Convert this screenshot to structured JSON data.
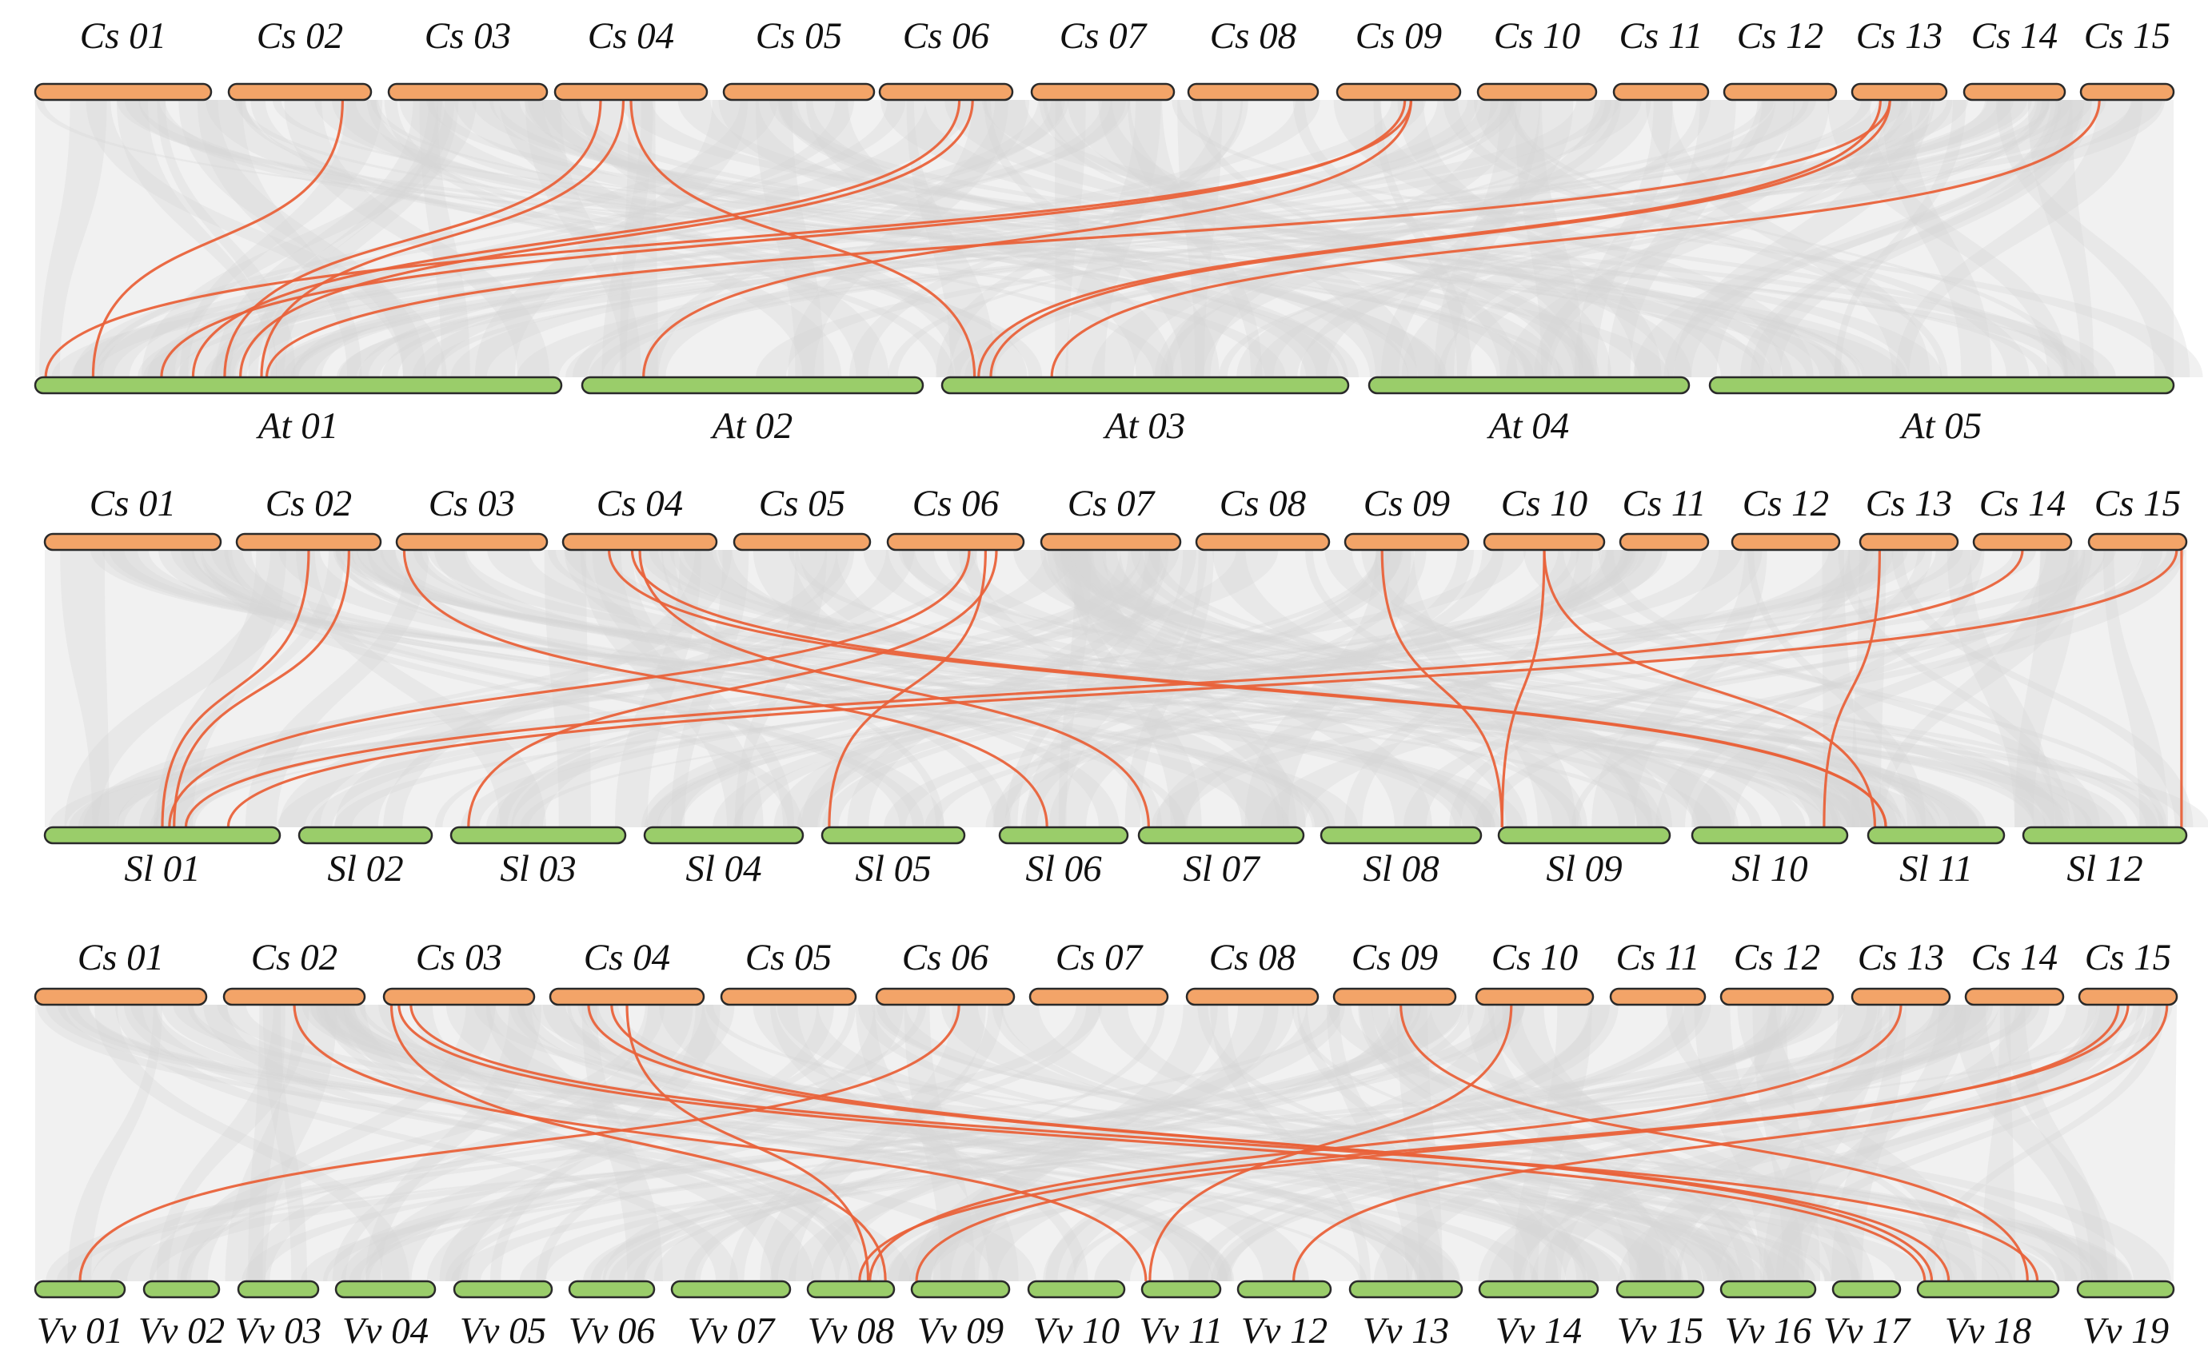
{
  "colors": {
    "top_chromosome": "#f3a468",
    "bottom_chromosome": "#9acd6a",
    "highlight_link": "#e9623a",
    "background_ribbon": "#d6d6d6"
  },
  "panels": [
    {
      "top_label_prefix": "Cs",
      "bottom_label_prefix": "At",
      "top_chromosomes": [
        "Cs 01",
        "Cs 02",
        "Cs 03",
        "Cs 04",
        "Cs 05",
        "Cs 06",
        "Cs 07",
        "Cs 08",
        "Cs 09",
        "Cs 10",
        "Cs 11",
        "Cs 12",
        "Cs 13",
        "Cs 14",
        "Cs 15"
      ],
      "bottom_chromosomes": [
        "At 01",
        "At 02",
        "At 03",
        "At 04",
        "At 05"
      ],
      "links": [
        {
          "from": "Cs 02",
          "to": "At 01"
        },
        {
          "from": "Cs 04",
          "to": "At 01"
        },
        {
          "from": "Cs 04",
          "to": "At 01"
        },
        {
          "from": "Cs 04",
          "to": "At 03"
        },
        {
          "from": "Cs 06",
          "to": "At 01"
        },
        {
          "from": "Cs 06",
          "to": "At 01"
        },
        {
          "from": "Cs 09",
          "to": "At 01"
        },
        {
          "from": "Cs 09",
          "to": "At 01"
        },
        {
          "from": "Cs 09",
          "to": "At 02"
        },
        {
          "from": "Cs 13",
          "to": "At 01"
        },
        {
          "from": "Cs 13",
          "to": "At 03"
        },
        {
          "from": "Cs 13",
          "to": "At 03"
        },
        {
          "from": "Cs 15",
          "to": "At 03"
        }
      ]
    },
    {
      "top_label_prefix": "Cs",
      "bottom_label_prefix": "Sl",
      "top_chromosomes": [
        "Cs 01",
        "Cs 02",
        "Cs 03",
        "Cs 04",
        "Cs 05",
        "Cs 06",
        "Cs 07",
        "Cs 08",
        "Cs 09",
        "Cs 10",
        "Cs 11",
        "Cs 12",
        "Cs 13",
        "Cs 14",
        "Cs 15"
      ],
      "bottom_chromosomes": [
        "Sl 01",
        "Sl 02",
        "Sl 03",
        "Sl 04",
        "Sl 05",
        "Sl 06",
        "Sl 07",
        "Sl 08",
        "Sl 09",
        "Sl 10",
        "Sl 11",
        "Sl 12"
      ],
      "links": [
        {
          "from": "Cs 02",
          "to": "Sl 01"
        },
        {
          "from": "Cs 02",
          "to": "Sl 01"
        },
        {
          "from": "Cs 03",
          "to": "Sl 06"
        },
        {
          "from": "Cs 04",
          "to": "Sl 07"
        },
        {
          "from": "Cs 04",
          "to": "Sl 11"
        },
        {
          "from": "Cs 04",
          "to": "Sl 11"
        },
        {
          "from": "Cs 06",
          "to": "Sl 01"
        },
        {
          "from": "Cs 06",
          "to": "Sl 03"
        },
        {
          "from": "Cs 06",
          "to": "Sl 05"
        },
        {
          "from": "Cs 09",
          "to": "Sl 09"
        },
        {
          "from": "Cs 10",
          "to": "Sl 09"
        },
        {
          "from": "Cs 10",
          "to": "Sl 11"
        },
        {
          "from": "Cs 13",
          "to": "Sl 10"
        },
        {
          "from": "Cs 14",
          "to": "Sl 01"
        },
        {
          "from": "Cs 15",
          "to": "Sl 01"
        },
        {
          "from": "Cs 15",
          "to": "Sl 12"
        }
      ]
    },
    {
      "top_label_prefix": "Cs",
      "bottom_label_prefix": "Vv",
      "top_chromosomes": [
        "Cs 01",
        "Cs 02",
        "Cs 03",
        "Cs 04",
        "Cs 05",
        "Cs 06",
        "Cs 07",
        "Cs 08",
        "Cs 09",
        "Cs 10",
        "Cs 11",
        "Cs 12",
        "Cs 13",
        "Cs 14",
        "Cs 15"
      ],
      "bottom_chromosomes": [
        "Vv 01",
        "Vv 02",
        "Vv 03",
        "Vv 04",
        "Vv 05",
        "Vv 06",
        "Vv 07",
        "Vv 08",
        "Vv 09",
        "Vv 10",
        "Vv 11",
        "Vv 12",
        "Vv 13",
        "Vv 14",
        "Vv 15",
        "Vv 16",
        "Vv 17",
        "Vv 18",
        "Vv 19"
      ],
      "links": [
        {
          "from": "Cs 02",
          "to": "Vv 11"
        },
        {
          "from": "Cs 03",
          "to": "Vv 08"
        },
        {
          "from": "Cs 03",
          "to": "Vv 18"
        },
        {
          "from": "Cs 03",
          "to": "Vv 18"
        },
        {
          "from": "Cs 04",
          "to": "Vv 08"
        },
        {
          "from": "Cs 04",
          "to": "Vv 18"
        },
        {
          "from": "Cs 04",
          "to": "Vv 18"
        },
        {
          "from": "Cs 06",
          "to": "Vv 01"
        },
        {
          "from": "Cs 09",
          "to": "Vv 18"
        },
        {
          "from": "Cs 10",
          "to": "Vv 11"
        },
        {
          "from": "Cs 13",
          "to": "Vv 08"
        },
        {
          "from": "Cs 15",
          "to": "Vv 08"
        },
        {
          "from": "Cs 15",
          "to": "Vv 09"
        },
        {
          "from": "Cs 15",
          "to": "Vv 12"
        }
      ]
    }
  ]
}
